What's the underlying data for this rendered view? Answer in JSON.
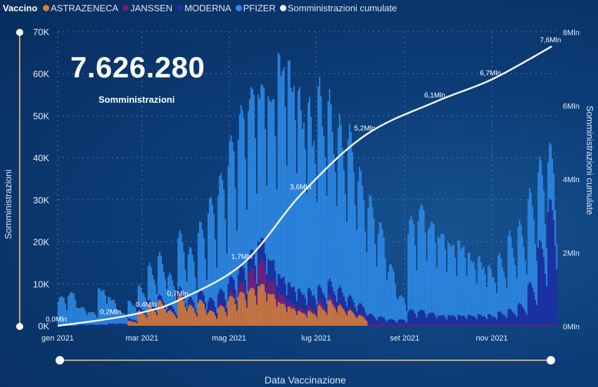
{
  "legend": {
    "title": "Vaccino",
    "items": [
      {
        "label": "ASTRAZENECA",
        "color": "#e07b39"
      },
      {
        "label": "JANSSEN",
        "color": "#7a1b7e"
      },
      {
        "label": "MODERNA",
        "color": "#1c2fa6"
      },
      {
        "label": "PFIZER",
        "color": "#2e8be8"
      },
      {
        "label": "Somministrazioni cumulate",
        "color": "#ffffff"
      }
    ]
  },
  "kpi": {
    "value": "7.626.280",
    "label": "Somministrazioni"
  },
  "chart_data": {
    "type": "bar+line",
    "xlabel": "Data Vaccinazione",
    "ylabel": "Somministrazioni",
    "y2label": "Somministrazioni cumulate",
    "x_tick_labels": [
      "gen 2021",
      "mar 2021",
      "mag 2021",
      "lug 2021",
      "set 2021",
      "nov 2021"
    ],
    "y_tick_labels": [
      "0K",
      "10K",
      "20K",
      "30K",
      "40K",
      "50K",
      "60K",
      "70K"
    ],
    "y2_tick_labels": [
      "0Mln",
      "2Mln",
      "4Mln",
      "6Mln",
      "8Mln"
    ],
    "ylim": [
      0,
      70000
    ],
    "y2lim": [
      0,
      8000000
    ],
    "grid": true,
    "legend_position": "top-left",
    "x": [
      "2021-01-01",
      "2021-01-08",
      "2021-01-15",
      "2021-01-22",
      "2021-01-29",
      "2021-02-05",
      "2021-02-12",
      "2021-02-19",
      "2021-02-26",
      "2021-03-05",
      "2021-03-12",
      "2021-03-19",
      "2021-03-26",
      "2021-04-02",
      "2021-04-09",
      "2021-04-16",
      "2021-04-23",
      "2021-04-30",
      "2021-05-07",
      "2021-05-14",
      "2021-05-21",
      "2021-05-28",
      "2021-06-04",
      "2021-06-11",
      "2021-06-18",
      "2021-06-25",
      "2021-07-02",
      "2021-07-09",
      "2021-07-16",
      "2021-07-23",
      "2021-07-30",
      "2021-08-06",
      "2021-08-13",
      "2021-08-20",
      "2021-08-27",
      "2021-09-03",
      "2021-09-10",
      "2021-09-17",
      "2021-09-24",
      "2021-10-01",
      "2021-10-08",
      "2021-10-15",
      "2021-10-22",
      "2021-10-29",
      "2021-11-05",
      "2021-11-12",
      "2021-11-19",
      "2021-11-26",
      "2021-12-03",
      "2021-12-10"
    ],
    "series_unit": "thousand daily doses",
    "series": [
      {
        "name": "ASTRAZENECA",
        "values": [
          0,
          0,
          0,
          0,
          0,
          0,
          0,
          1,
          3,
          4,
          5,
          3,
          6,
          4,
          5,
          3,
          4,
          6,
          7,
          8,
          9,
          7,
          5,
          4,
          3,
          3,
          4,
          5,
          4,
          3,
          2,
          0,
          0,
          0,
          0,
          0,
          0,
          0,
          0,
          0,
          0,
          0,
          0,
          0,
          0,
          0,
          0,
          0,
          0,
          0
        ]
      },
      {
        "name": "JANSSEN",
        "values": [
          0,
          0,
          0,
          0,
          0,
          0,
          0,
          0,
          0,
          0,
          0,
          0,
          0,
          0,
          0,
          0,
          0.5,
          1,
          2,
          4,
          5,
          3,
          2,
          1,
          1,
          1,
          1,
          1,
          0.5,
          0.3,
          0.3,
          0.3,
          0.3,
          0.3,
          0.3,
          0.3,
          0.3,
          0.3,
          0.3,
          0.3,
          0.3,
          0.3,
          0.3,
          0.3,
          0.3,
          0.3,
          0.3,
          0.3,
          0.3,
          0.3
        ]
      },
      {
        "name": "MODERNA",
        "values": [
          0,
          0,
          0.3,
          0.3,
          0.3,
          0.5,
          0.5,
          0.5,
          0.8,
          1,
          1,
          1.2,
          1.4,
          1.5,
          2,
          2.5,
          2.8,
          3,
          3.5,
          4,
          5,
          4.5,
          4,
          4,
          3.5,
          3.5,
          3,
          3,
          3,
          2.5,
          2,
          2,
          1.5,
          1,
          1,
          3,
          3,
          2.5,
          2,
          2,
          2,
          2,
          2,
          2,
          2.5,
          3,
          4,
          8,
          16,
          24
        ]
      },
      {
        "name": "PFIZER",
        "values": [
          6,
          7,
          3.7,
          2.7,
          7.7,
          5.5,
          2.5,
          3.5,
          4.2,
          7,
          8,
          5.8,
          10.6,
          9.5,
          13,
          19.5,
          22.7,
          28,
          32.5,
          34,
          33,
          35.5,
          47,
          46,
          40.5,
          37.5,
          40,
          36,
          32.5,
          32.2,
          25.7,
          22.7,
          18.2,
          10.7,
          4.7,
          18.7,
          21.7,
          19.2,
          17.7,
          15.7,
          15.7,
          12.7,
          11.7,
          9.7,
          11.2,
          14.7,
          15.7,
          17.7,
          15.7,
          10.7
        ]
      }
    ],
    "cumulative": {
      "name": "Somministrazioni cumulate",
      "points": [
        {
          "x": "2021-01-01",
          "y": 0,
          "label": "0,0Mln"
        },
        {
          "x": "2021-02-08",
          "y": 200000,
          "label": "0,2Mln"
        },
        {
          "x": "2021-03-05",
          "y": 400000,
          "label": "0,4Mln"
        },
        {
          "x": "2021-03-27",
          "y": 700000,
          "label": "0,7Mln"
        },
        {
          "x": "2021-05-11",
          "y": 1700000,
          "label": "1,7Mln"
        },
        {
          "x": "2021-06-21",
          "y": 3600000,
          "label": "3,6Mln"
        },
        {
          "x": "2021-08-05",
          "y": 5200000,
          "label": "5,2Mln"
        },
        {
          "x": "2021-09-23",
          "y": 6100000,
          "label": "6,1Mln"
        },
        {
          "x": "2021-11-01",
          "y": 6700000,
          "label": "6,7Mln"
        },
        {
          "x": "2021-12-13",
          "y": 7600000,
          "label": "7,6Mln"
        }
      ]
    }
  }
}
